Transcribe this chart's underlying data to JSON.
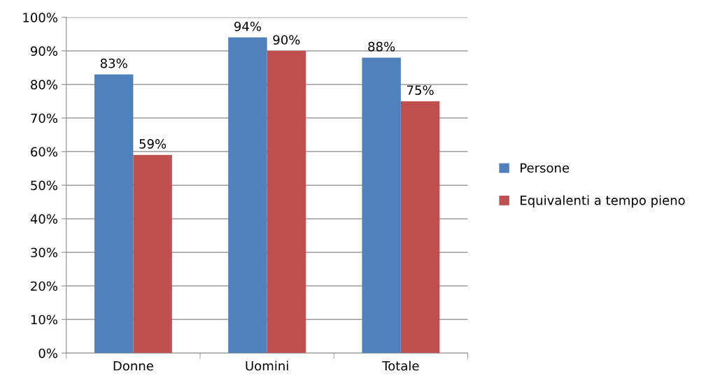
{
  "chart_data": {
    "type": "bar",
    "categories": [
      "Donne",
      "Uomini",
      "Totale"
    ],
    "series": [
      {
        "name": "Persone",
        "color": "#4f81bd",
        "values": [
          83,
          94,
          88
        ],
        "value_labels": [
          "83%",
          "94%",
          "88%"
        ]
      },
      {
        "name": "Equivalenti a tempo pieno",
        "color": "#c0504d",
        "values": [
          59,
          90,
          75
        ],
        "value_labels": [
          "59%",
          "90%",
          "75%"
        ]
      }
    ],
    "ylim": [
      0,
      100
    ],
    "yticks": [
      {
        "value": 0,
        "label": "0%"
      },
      {
        "value": 10,
        "label": "10%"
      },
      {
        "value": 20,
        "label": "20%"
      },
      {
        "value": 30,
        "label": "30%"
      },
      {
        "value": 40,
        "label": "40%"
      },
      {
        "value": 50,
        "label": "50%"
      },
      {
        "value": 60,
        "label": "60%"
      },
      {
        "value": 70,
        "label": "70%"
      },
      {
        "value": 80,
        "label": "80%"
      },
      {
        "value": 90,
        "label": "90%"
      },
      {
        "value": 100,
        "label": "100%"
      }
    ],
    "grid": "y",
    "legend": "right"
  }
}
